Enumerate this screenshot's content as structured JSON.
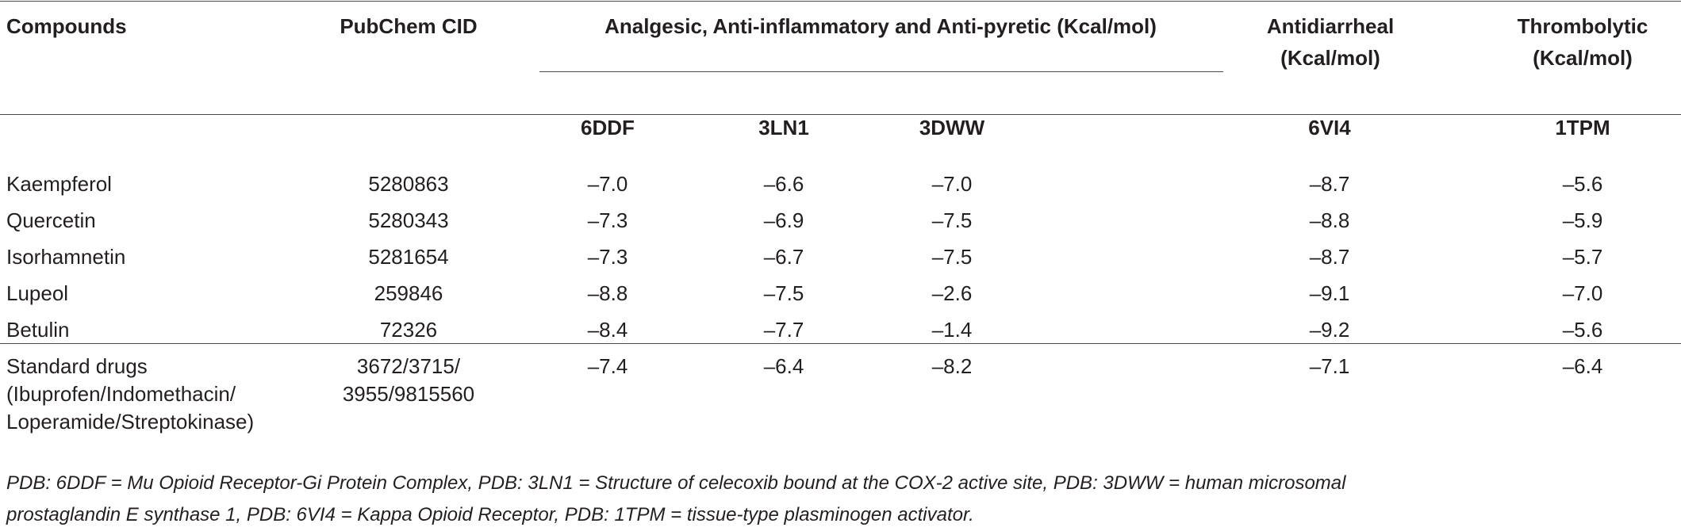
{
  "table": {
    "headers": {
      "compounds": "Compounds",
      "pubchem_cid": "PubChem CID",
      "group_analgesic": "Analgesic, Anti-inflammatory and Anti-pyretic (Kcal/mol)",
      "antidiarrheal_line1": "Antidiarrheal",
      "antidiarrheal_line2": "(Kcal/mol)",
      "thrombolytic_line1": "Thrombolytic",
      "thrombolytic_line2": "(Kcal/mol)",
      "sub_6ddf": "6DDF",
      "sub_3ln1": "3LN1",
      "sub_3dww": "3DWW",
      "sub_6vi4": "6VI4",
      "sub_1tpm": "1TPM"
    },
    "rows": [
      {
        "compound": "Kaempferol",
        "cid": "5280863",
        "v6ddf": "–7.0",
        "v3ln1": "–6.6",
        "v3dww": "–7.0",
        "v6vi4": "–8.7",
        "v1tpm": "–5.6"
      },
      {
        "compound": "Quercetin",
        "cid": "5280343",
        "v6ddf": "–7.3",
        "v3ln1": "–6.9",
        "v3dww": "–7.5",
        "v6vi4": "–8.8",
        "v1tpm": "–5.9"
      },
      {
        "compound": "Isorhamnetin",
        "cid": "5281654",
        "v6ddf": "–7.3",
        "v3ln1": "–6.7",
        "v3dww": "–7.5",
        "v6vi4": "–8.7",
        "v1tpm": "–5.7"
      },
      {
        "compound": "Lupeol",
        "cid": "259846",
        "v6ddf": "–8.8",
        "v3ln1": "–7.5",
        "v3dww": "–2.6",
        "v6vi4": "–9.1",
        "v1tpm": "–7.0"
      },
      {
        "compound": "Betulin",
        "cid": "72326",
        "v6ddf": "–8.4",
        "v3ln1": "–7.7",
        "v3dww": "–1.4",
        "v6vi4": "–9.2",
        "v1tpm": "–5.6"
      }
    ],
    "standard": {
      "compound_line1": "Standard drugs",
      "compound_line2": "(Ibuprofen/Indomethacin/",
      "compound_line3": "Loperamide/Streptokinase)",
      "cid_line1": "3672/3715/",
      "cid_line2": "3955/9815560",
      "v6ddf": "–7.4",
      "v3ln1": "–6.4",
      "v3dww": "–8.2",
      "v6vi4": "–7.1",
      "v1tpm": "–6.4"
    },
    "footnote_line1": "PDB: 6DDF = Mu Opioid Receptor-Gi Protein Complex, PDB: 3LN1 = Structure of celecoxib bound at the COX-2 active site, PDB: 3DWW = human microsomal",
    "footnote_line2": "prostaglandin E synthase 1, PDB: 6VI4 = Kappa Opioid Receptor, PDB: 1TPM = tissue-type plasminogen activator."
  }
}
